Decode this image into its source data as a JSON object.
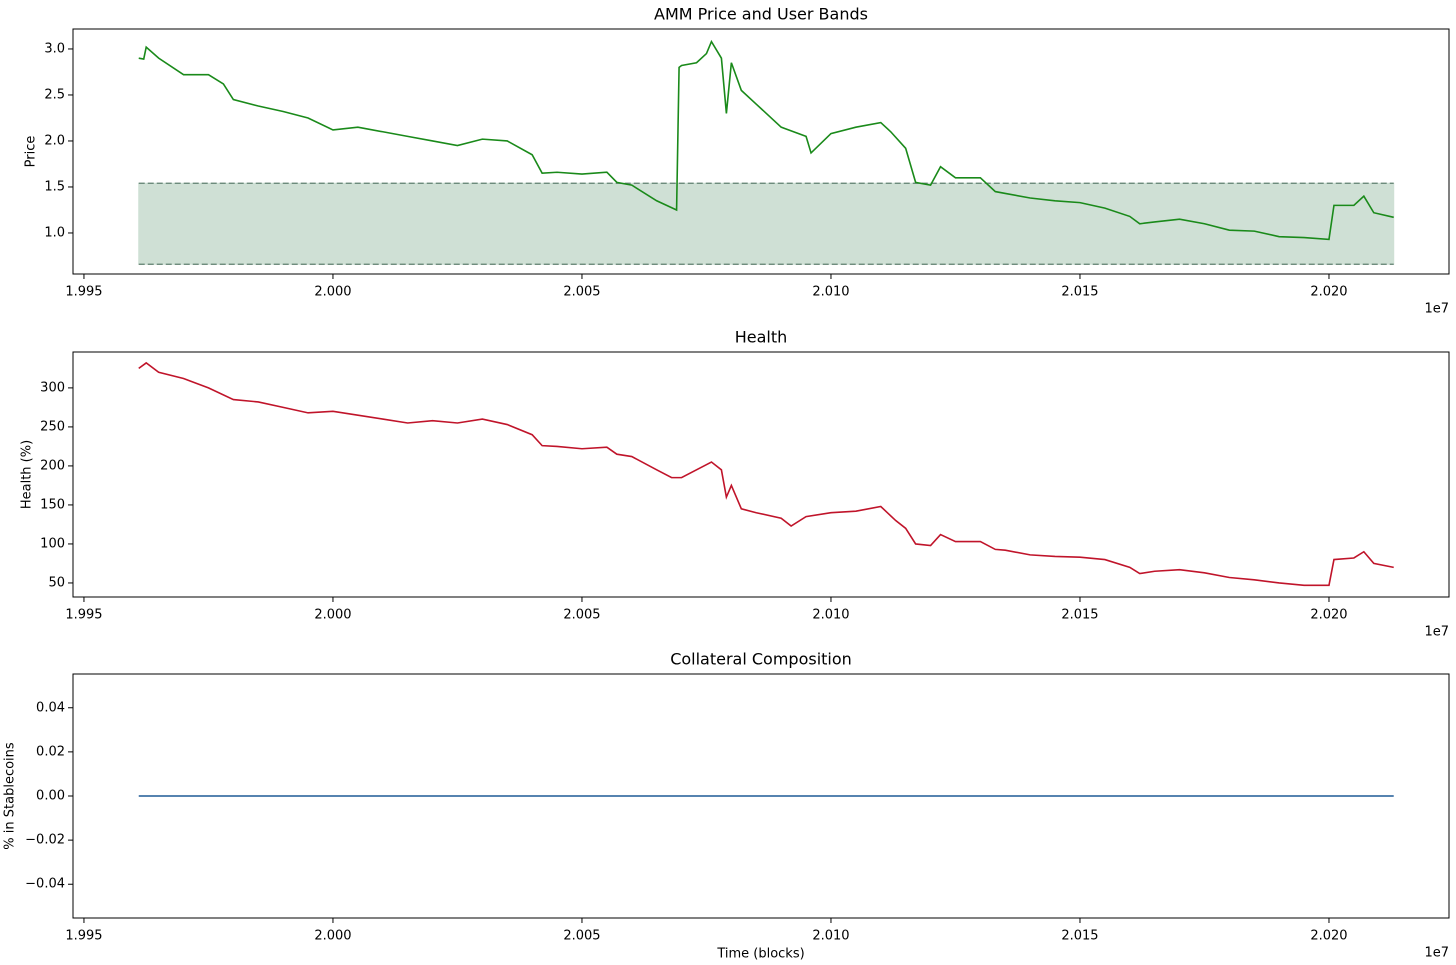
{
  "chart_data": [
    {
      "type": "line",
      "title": "AMM Price and User Bands",
      "ylabel": "Price",
      "offset_label": "1e7",
      "x": [
        1.9961,
        1.9962,
        1.99625,
        1.9965,
        1.997,
        1.9975,
        1.9978,
        1.998,
        1.9985,
        1.999,
        1.9995,
        2.0,
        2.0005,
        2.001,
        2.0015,
        2.002,
        2.0025,
        2.003,
        2.0035,
        2.004,
        2.0042,
        2.0045,
        2.005,
        2.0055,
        2.0057,
        2.006,
        2.0065,
        2.0069,
        2.00695,
        2.007,
        2.0073,
        2.0075,
        2.0076,
        2.0078,
        2.0079,
        2.008,
        2.0082,
        2.0085,
        2.009,
        2.0095,
        2.0096,
        2.01,
        2.0105,
        2.011,
        2.0112,
        2.0115,
        2.0117,
        2.012,
        2.0122,
        2.0125,
        2.013,
        2.0133,
        2.0135,
        2.014,
        2.0145,
        2.015,
        2.0155,
        2.016,
        2.0162,
        2.0165,
        2.017,
        2.0175,
        2.018,
        2.0185,
        2.019,
        2.0195,
        2.02,
        2.0201,
        2.0205,
        2.0207,
        2.0209,
        2.0213
      ],
      "series": [
        {
          "name": "AMM Price",
          "color": "#1a8a1a",
          "values": [
            2.9,
            2.89,
            3.02,
            2.9,
            2.72,
            2.72,
            2.62,
            2.45,
            2.38,
            2.32,
            2.25,
            2.12,
            2.15,
            2.1,
            2.05,
            2.0,
            1.95,
            2.02,
            2.0,
            1.85,
            1.65,
            1.66,
            1.64,
            1.66,
            1.55,
            1.52,
            1.35,
            1.25,
            2.8,
            2.82,
            2.85,
            2.95,
            3.08,
            2.9,
            2.3,
            2.85,
            2.55,
            2.4,
            2.15,
            2.05,
            1.87,
            2.08,
            2.15,
            2.2,
            2.1,
            1.92,
            1.55,
            1.52,
            1.72,
            1.6,
            1.6,
            1.45,
            1.43,
            1.38,
            1.35,
            1.33,
            1.27,
            1.18,
            1.1,
            1.12,
            1.15,
            1.1,
            1.03,
            1.02,
            0.96,
            0.95,
            0.93,
            1.3,
            1.3,
            1.4,
            1.22,
            1.17
          ]
        }
      ],
      "band": {
        "x": [
          1.9961,
          2.0213
        ],
        "lower": 0.66,
        "upper": 1.54,
        "color": "#cfe0d5",
        "edge_color": "#5f7f6f"
      },
      "xlim": [
        1.99478,
        2.02241
      ],
      "ylim": [
        0.554,
        3.217
      ],
      "xticks": [
        1.995,
        {
          "value": 2.0,
          "label": "2.000"
        },
        2.005,
        {
          "value": 2.01,
          "label": "2.010"
        },
        2.015,
        {
          "value": 2.02,
          "label": "2.020"
        }
      ],
      "yticks": [
        {
          "value": 1.0,
          "label": "1.0"
        },
        1.5,
        {
          "value": 2.0,
          "label": "2.0"
        },
        2.5,
        {
          "value": 3.0,
          "label": "3.0"
        }
      ]
    },
    {
      "type": "line",
      "title": "Health",
      "ylabel": "Health (%)",
      "offset_label": "1e7",
      "x": [
        1.9961,
        1.99625,
        1.9965,
        1.997,
        1.9975,
        1.998,
        1.9985,
        1.999,
        1.9995,
        2.0,
        2.0005,
        2.001,
        2.0015,
        2.002,
        2.0025,
        2.003,
        2.0035,
        2.004,
        2.0042,
        2.0045,
        2.005,
        2.0055,
        2.0057,
        2.006,
        2.0065,
        2.0068,
        2.007,
        2.0073,
        2.0076,
        2.0078,
        2.0079,
        2.008,
        2.0082,
        2.0085,
        2.009,
        2.0092,
        2.0095,
        2.01,
        2.0105,
        2.011,
        2.0113,
        2.0115,
        2.0117,
        2.012,
        2.0122,
        2.0125,
        2.013,
        2.0133,
        2.0135,
        2.014,
        2.0145,
        2.015,
        2.0155,
        2.016,
        2.0162,
        2.0165,
        2.017,
        2.0175,
        2.018,
        2.0185,
        2.019,
        2.0195,
        2.02,
        2.0201,
        2.0205,
        2.0207,
        2.0209,
        2.0213
      ],
      "series": [
        {
          "name": "Health",
          "color": "#c0142a",
          "values": [
            325,
            332,
            320,
            312,
            300,
            285,
            282,
            275,
            268,
            270,
            265,
            260,
            255,
            258,
            255,
            260,
            253,
            240,
            226,
            225,
            222,
            224,
            215,
            212,
            195,
            185,
            185,
            195,
            205,
            195,
            160,
            175,
            145,
            140,
            133,
            123,
            135,
            140,
            142,
            148,
            130,
            120,
            100,
            98,
            112,
            103,
            103,
            93,
            92,
            86,
            84,
            83,
            80,
            70,
            62,
            65,
            67,
            63,
            57,
            54,
            50,
            47,
            47,
            80,
            82,
            90,
            75,
            70
          ]
        }
      ],
      "xlim": [
        1.99478,
        2.02241
      ],
      "ylim": [
        32,
        346
      ],
      "xticks": [
        1.995,
        {
          "value": 2.0,
          "label": "2.000"
        },
        2.005,
        {
          "value": 2.01,
          "label": "2.010"
        },
        2.015,
        {
          "value": 2.02,
          "label": "2.020"
        }
      ],
      "yticks": [
        50,
        100,
        150,
        200,
        250,
        300
      ]
    },
    {
      "type": "line",
      "title": "Collateral Composition",
      "ylabel": "% in Stablecoins",
      "xlabel": "Time (blocks)",
      "offset_label": "1e7",
      "x": [
        1.9961,
        2.0213
      ],
      "series": [
        {
          "name": "Stablecoins",
          "color": "#1f5a96",
          "values": [
            0,
            0
          ]
        }
      ],
      "xlim": [
        1.99478,
        2.02241
      ],
      "ylim": [
        -0.0553,
        0.0553
      ],
      "xticks": [
        1.995,
        {
          "value": 2.0,
          "label": "2.000"
        },
        2.005,
        {
          "value": 2.01,
          "label": "2.010"
        },
        2.015,
        {
          "value": 2.02,
          "label": "2.020"
        }
      ],
      "yticks": [
        {
          "value": -0.04,
          "label": "−0.04"
        },
        {
          "value": -0.02,
          "label": "−0.02"
        },
        {
          "value": 0,
          "label": "0.00"
        },
        0.02,
        0.04
      ]
    }
  ]
}
